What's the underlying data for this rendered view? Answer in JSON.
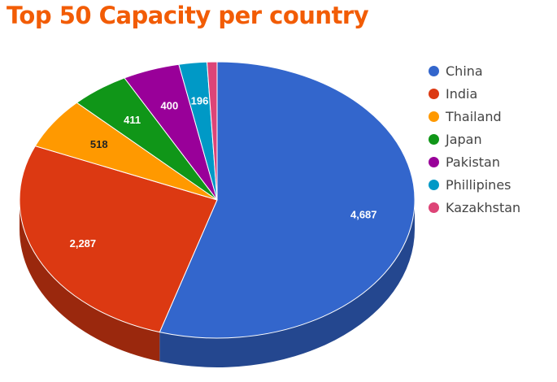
{
  "chart_data": {
    "type": "pie",
    "title": "Top 50 Capacity per country",
    "legend_position": "right",
    "three_d": true,
    "slices": [
      {
        "label": "China",
        "value": 4687,
        "display": "4,687",
        "color": "#3366cc",
        "side_color": "#24478f"
      },
      {
        "label": "India",
        "value": 2287,
        "display": "2,287",
        "color": "#dc3912",
        "side_color": "#9a280d"
      },
      {
        "label": "Thailand",
        "value": 518,
        "display": "518",
        "color": "#ff9900",
        "side_color": "#b36b00"
      },
      {
        "label": "Japan",
        "value": 411,
        "display": "411",
        "color": "#109618",
        "side_color": "#0b6911"
      },
      {
        "label": "Pakistan",
        "value": 400,
        "display": "400",
        "color": "#990099",
        "side_color": "#6b006b"
      },
      {
        "label": "Phillipines",
        "value": 196,
        "display": "196",
        "color": "#0099c6",
        "side_color": "#006b8b"
      },
      {
        "label": "Kazakhstan",
        "value": 70,
        "display": "",
        "color": "#dd4477",
        "side_color": "#9b3053"
      }
    ]
  }
}
